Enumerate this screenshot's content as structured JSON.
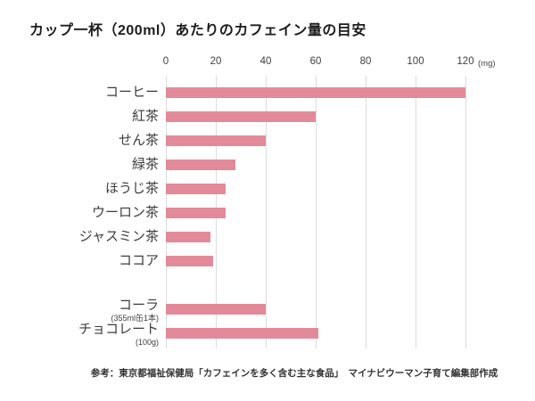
{
  "title": "カップ一杯（200ml）あたりのカフェイン量の目安",
  "chart_data": {
    "type": "bar",
    "orientation": "horizontal",
    "title": "カップ一杯（200ml）あたりのカフェイン量の目安",
    "unit_label": "(mg)",
    "x_ticks": [
      0,
      20,
      40,
      60,
      80,
      100,
      120
    ],
    "xlim": [
      0,
      120
    ],
    "grid": true,
    "categories": [
      "コーヒー",
      "紅茶",
      "せん茶",
      "緑茶",
      "ほうじ茶",
      "ウーロン茶",
      "ジャスミン茶",
      "ココア",
      "コーラ",
      "チョコレート"
    ],
    "sublabels": [
      "",
      "",
      "",
      "",
      "",
      "",
      "",
      "",
      "(355ml缶1本)",
      "(100g)"
    ],
    "values": [
      120,
      60,
      40,
      28,
      24,
      24,
      18,
      19,
      40,
      61
    ],
    "group_break_after_index": 7,
    "bar_color": "#e28a99",
    "gridline_color": "#dcdcdc"
  },
  "footer": {
    "source": "参考：東京都福祉保健局「カフェインを多く含む主な食品」　マイナビウーマン子育て編集部作成"
  }
}
